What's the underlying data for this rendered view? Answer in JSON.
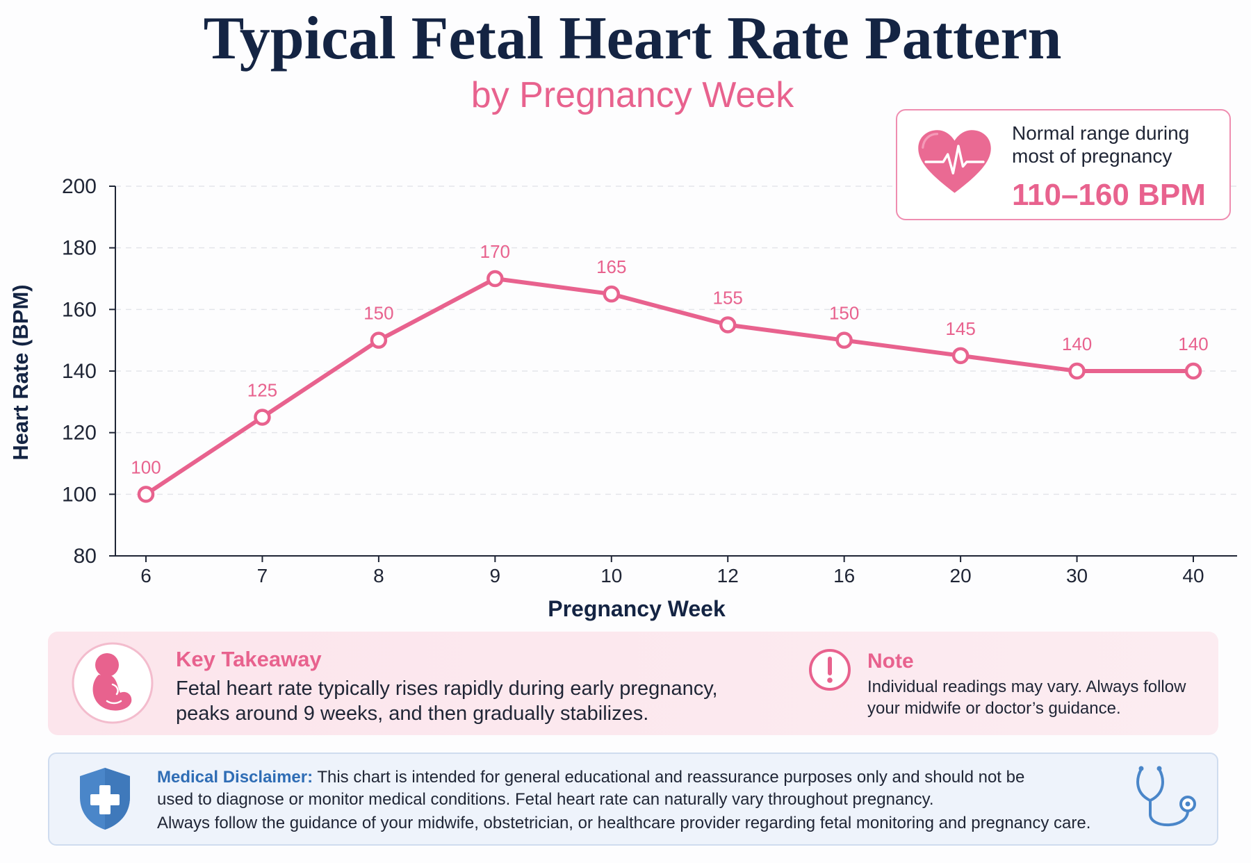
{
  "chart_data": {
    "type": "line",
    "title": "Typical Fetal Heart Rate Pattern",
    "subtitle": "by Pregnancy Week",
    "xlabel": "Pregnancy Week",
    "ylabel": "Heart Rate (BPM)",
    "categories": [
      "6",
      "7",
      "8",
      "9",
      "10",
      "12",
      "16",
      "20",
      "30",
      "40"
    ],
    "series": [
      {
        "values": [
          100,
          125,
          150,
          170,
          165,
          155,
          150,
          145,
          140,
          140
        ],
        "color": "#e8628e"
      }
    ],
    "ylim": [
      80,
      200
    ],
    "yticks": [
      80,
      100,
      120,
      140,
      160,
      180,
      200
    ],
    "grid": true,
    "data_labels": true
  },
  "callout": {
    "icon": "heart-pulse-icon",
    "line1": "Normal range during",
    "line2": "most of pregnancy",
    "range": "110–160 BPM"
  },
  "key_takeaway": {
    "icon": "fetus-icon",
    "title": "Key Takeaway",
    "lines": [
      "Fetal heart rate typically rises rapidly during early pregnancy,",
      "peaks around 9 weeks, and then gradually stabilizes."
    ]
  },
  "note": {
    "icon": "exclamation-icon",
    "title": "Note",
    "lines": [
      "Individual readings may vary. Always follow",
      "your midwife or doctor’s guidance."
    ]
  },
  "disclaimer": {
    "icon": "shield-plus-icon",
    "icon_right": "stethoscope-icon",
    "label": "Medical Disclaimer:",
    "lines": [
      " This chart is intended for general educational and reassurance purposes only and should not be",
      "used to diagnose or monitor medical conditions. Fetal heart rate can naturally vary throughout pregnancy.",
      "Always follow the guidance of your midwife, obstetrician, or healthcare provider regarding fetal monitoring and pregnancy care."
    ]
  },
  "colors": {
    "title": "#142443",
    "accent": "#e8628e",
    "disclaimer_accent": "#2f6db5",
    "disclaimer_icon": "#4a86c9"
  }
}
